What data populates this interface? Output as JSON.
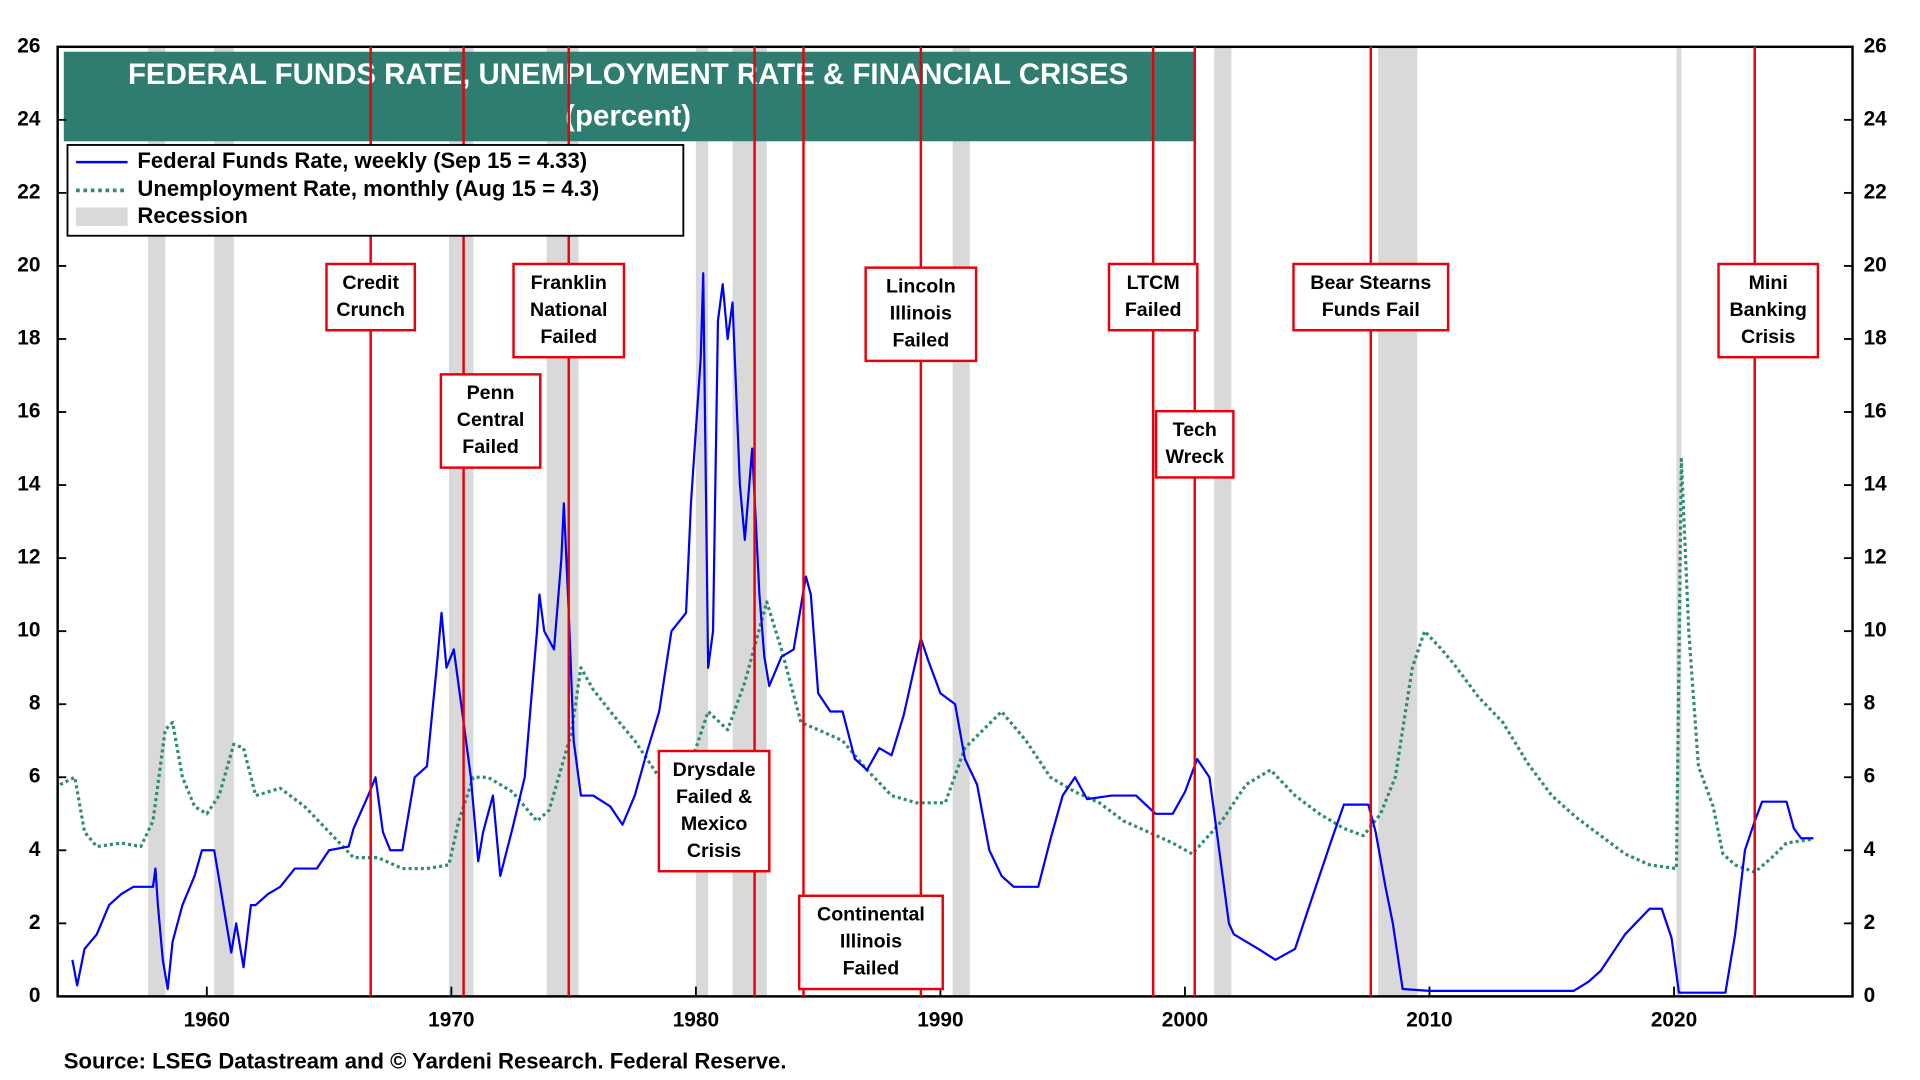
{
  "chart_data": {
    "type": "line",
    "title": "FEDERAL FUNDS RATE, UNEMPLOYMENT RATE & FINANCIAL CRISES",
    "subtitle": "(percent)",
    "source": "Source: LSEG Datastream and © Yardeni Research. Federal Reserve.",
    "xlim": [
      1953.9,
      2027.3
    ],
    "xticks": [
      1960,
      1970,
      1980,
      1990,
      2000,
      2010,
      2020
    ],
    "ylim": [
      0,
      26
    ],
    "yticks": [
      0,
      2,
      4,
      6,
      8,
      10,
      12,
      14,
      16,
      18,
      20,
      22,
      24,
      26
    ],
    "y2lim": [
      0,
      26
    ],
    "y2ticks": [
      0,
      2,
      4,
      6,
      8,
      10,
      12,
      14,
      16,
      18,
      20,
      22,
      24,
      26
    ],
    "recession_label": "Recession",
    "recession_color": "#d9d9d9",
    "recessions": [
      [
        1957.6,
        1958.3
      ],
      [
        1960.3,
        1961.1
      ],
      [
        1969.9,
        1970.9
      ],
      [
        1973.9,
        1975.2
      ],
      [
        1980.0,
        1980.5
      ],
      [
        1981.5,
        1982.9
      ],
      [
        1990.5,
        1991.2
      ],
      [
        2001.2,
        2001.9
      ],
      [
        2007.9,
        2009.5
      ],
      [
        2020.1,
        2020.3
      ]
    ],
    "event_color": "#e8000b",
    "events": [
      {
        "x": 1966.7,
        "label": [
          "Credit",
          "Crunch"
        ]
      },
      {
        "x": 1970.5,
        "label": [
          "Penn",
          "Central",
          "Failed"
        ]
      },
      {
        "x": 1974.8,
        "label": [
          "Franklin",
          "National",
          "Failed"
        ]
      },
      {
        "x": 1982.4,
        "label": [
          "Drysdale",
          "Failed &",
          "Mexico",
          "Crisis"
        ]
      },
      {
        "x": 1984.4,
        "label": [
          "Continental",
          "Illinois",
          "Failed"
        ]
      },
      {
        "x": 1989.2,
        "label": [
          "Lincoln",
          "Illinois",
          "Failed"
        ]
      },
      {
        "x": 1998.7,
        "label": [
          "LTCM",
          "Failed"
        ]
      },
      {
        "x": 2000.4,
        "label": [
          "Tech",
          "Wreck"
        ]
      },
      {
        "x": 2007.6,
        "label": [
          "Bear Stearns",
          "Funds Fail"
        ]
      },
      {
        "x": 2023.3,
        "label": [
          "Mini",
          "Banking",
          "Crisis"
        ]
      }
    ],
    "series": [
      {
        "name": "Federal Funds Rate, weekly (Sep 15 = 4.33)",
        "color": "#0000ff",
        "style": "solid",
        "x": [
          1954.5,
          1954.7,
          1955,
          1955.5,
          1956,
          1956.5,
          1957,
          1957.8,
          1957.9,
          1958.0,
          1958.2,
          1958.4,
          1958.6,
          1959,
          1959.5,
          1959.8,
          1960.3,
          1960.5,
          1960.8,
          1961,
          1961.2,
          1961.5,
          1961.8,
          1962,
          1962.5,
          1963,
          1963.6,
          1964.5,
          1965,
          1965.8,
          1966,
          1966.6,
          1966.9,
          1967.2,
          1967.5,
          1968,
          1968.5,
          1969,
          1969.4,
          1969.6,
          1969.8,
          1970.1,
          1970.4,
          1970.8,
          1971.1,
          1971.3,
          1971.7,
          1972,
          1972.5,
          1973,
          1973.5,
          1973.6,
          1973.8,
          1974.2,
          1974.5,
          1974.6,
          1974.8,
          1975,
          1975.3,
          1975.8,
          1976.5,
          1977,
          1977.5,
          1978,
          1978.5,
          1979,
          1979.6,
          1979.8,
          1980.2,
          1980.3,
          1980.5,
          1980.7,
          1980.9,
          1981.1,
          1981.3,
          1981.5,
          1981.8,
          1982.0,
          1982.3,
          1982.6,
          1982.8,
          1983,
          1983.5,
          1984,
          1984.5,
          1984.7,
          1985,
          1985.5,
          1986,
          1986.5,
          1987,
          1987.5,
          1988,
          1988.5,
          1989.2,
          1989.5,
          1990,
          1990.6,
          1991,
          1991.5,
          1992,
          1992.5,
          1993,
          1994,
          1994.5,
          1995,
          1995.5,
          1996,
          1997,
          1998,
          1998.8,
          1999.5,
          2000,
          2000.5,
          2001,
          2001.3,
          2001.8,
          2002,
          2003,
          2003.7,
          2004.5,
          2005,
          2006,
          2006.5,
          2007.5,
          2007.8,
          2008.2,
          2008.5,
          2008.9,
          2010,
          2012,
          2015.9,
          2016.5,
          2017,
          2018,
          2019,
          2019.5,
          2019.9,
          2020.2,
          2022.1,
          2022.5,
          2022.9,
          2023.3,
          2023.6,
          2024.6,
          2024.9,
          2025.2,
          2025.7
        ],
        "values": [
          1.0,
          0.3,
          1.3,
          1.7,
          2.5,
          2.8,
          3.0,
          3.0,
          3.5,
          2.5,
          1.0,
          0.2,
          1.5,
          2.5,
          3.3,
          4.0,
          4.0,
          3.2,
          2.0,
          1.2,
          2.0,
          0.8,
          2.5,
          2.5,
          2.8,
          3.0,
          3.5,
          3.5,
          4.0,
          4.1,
          4.6,
          5.5,
          6.0,
          4.5,
          4.0,
          4.0,
          6.0,
          6.3,
          9.0,
          10.5,
          9.0,
          9.5,
          8.0,
          6.0,
          3.7,
          4.5,
          5.5,
          3.3,
          4.6,
          6.0,
          10.0,
          11.0,
          10.0,
          9.5,
          12.0,
          13.5,
          10.5,
          7.0,
          5.5,
          5.5,
          5.2,
          4.7,
          5.5,
          6.7,
          7.8,
          10.0,
          10.5,
          13.5,
          17.5,
          19.8,
          9.0,
          10.0,
          18.5,
          19.5,
          18.0,
          19.0,
          14.0,
          12.5,
          15.0,
          11.0,
          9.3,
          8.5,
          9.3,
          9.5,
          11.5,
          11.0,
          8.3,
          7.8,
          7.8,
          6.5,
          6.2,
          6.8,
          6.6,
          7.7,
          9.8,
          9.2,
          8.3,
          8.0,
          6.5,
          5.8,
          4.0,
          3.3,
          3.0,
          3.0,
          4.3,
          5.5,
          6.0,
          5.4,
          5.5,
          5.5,
          5.0,
          5.0,
          5.6,
          6.5,
          6.0,
          4.5,
          2.0,
          1.7,
          1.3,
          1.0,
          1.3,
          2.3,
          4.3,
          5.25,
          5.25,
          4.5,
          3.0,
          2.0,
          0.2,
          0.15,
          0.15,
          0.15,
          0.4,
          0.7,
          1.7,
          2.4,
          2.4,
          1.6,
          0.1,
          0.1,
          1.7,
          4.0,
          4.8,
          5.33,
          5.33,
          4.6,
          4.33,
          4.33
        ]
      },
      {
        "name": "Unemployment Rate, monthly (Aug 15 = 4.3)",
        "color": "#2e8b74",
        "style": "dotted",
        "x": [
          1954,
          1954.6,
          1955,
          1955.5,
          1956.5,
          1957.3,
          1957.8,
          1958.3,
          1958.6,
          1959,
          1959.5,
          1960,
          1960.5,
          1961.1,
          1961.5,
          1962,
          1963,
          1964,
          1965,
          1966,
          1967,
          1968,
          1969,
          1969.9,
          1970.3,
          1970.9,
          1971.5,
          1972.5,
          1973.5,
          1974,
          1974.9,
          1975.3,
          1975.8,
          1976.5,
          1977.5,
          1978.5,
          1979.5,
          1980.5,
          1981.3,
          1982,
          1982.9,
          1983.5,
          1984.3,
          1985,
          1986,
          1987,
          1988,
          1989,
          1990.2,
          1991,
          1992.5,
          1993.5,
          1994.5,
          1995.5,
          1996.5,
          1997.5,
          1998.5,
          1999.5,
          2000.3,
          2001.5,
          2002.5,
          2003.5,
          2004.5,
          2005.5,
          2006.5,
          2007.3,
          2008,
          2008.6,
          2009.3,
          2009.8,
          2010.5,
          2011,
          2012,
          2013,
          2014,
          2015,
          2016,
          2017,
          2018,
          2019,
          2020.1,
          2020.3,
          2020.6,
          2021,
          2021.6,
          2022,
          2022.5,
          2023.3,
          2024,
          2024.6,
          2025.6
        ],
        "values": [
          5.8,
          6.0,
          4.5,
          4.1,
          4.2,
          4.1,
          4.8,
          7.3,
          7.5,
          6.0,
          5.2,
          5.0,
          5.5,
          6.9,
          6.8,
          5.5,
          5.7,
          5.2,
          4.5,
          3.8,
          3.8,
          3.5,
          3.5,
          3.6,
          4.8,
          6.0,
          6.0,
          5.6,
          4.8,
          5.1,
          7.2,
          9.0,
          8.4,
          7.8,
          7.0,
          6.0,
          5.8,
          7.8,
          7.3,
          8.6,
          10.8,
          9.5,
          7.5,
          7.3,
          7.0,
          6.2,
          5.5,
          5.3,
          5.3,
          6.8,
          7.8,
          7.0,
          6.0,
          5.6,
          5.3,
          4.8,
          4.5,
          4.2,
          3.9,
          4.8,
          5.8,
          6.2,
          5.5,
          5.0,
          4.6,
          4.4,
          5.0,
          6.0,
          9.0,
          10.0,
          9.5,
          9.1,
          8.2,
          7.5,
          6.4,
          5.5,
          4.9,
          4.4,
          3.9,
          3.6,
          3.5,
          14.7,
          10.0,
          6.3,
          5.2,
          3.9,
          3.6,
          3.4,
          3.8,
          4.2,
          4.3
        ]
      }
    ]
  }
}
